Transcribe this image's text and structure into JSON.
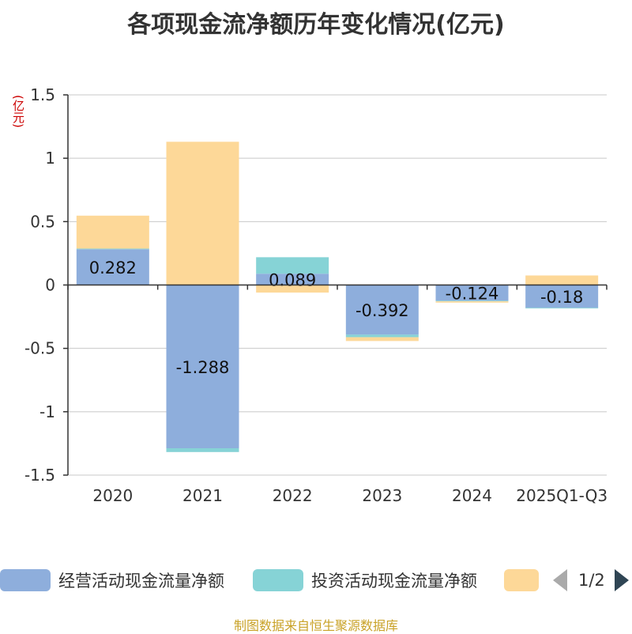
{
  "title": "各项现金流净额历年变化情况(亿元)",
  "y_unit_label": "(亿元)",
  "source": "制图数据来自恒生聚源数据库",
  "pager": "1/2",
  "colors": {
    "operating": "#8eaedc",
    "investing": "#86d3d6",
    "financing": "#fdd898",
    "grid": "#c8c8c8",
    "axis": "#333333"
  },
  "chart_data": {
    "type": "bar",
    "stacked": true,
    "categories": [
      "2020",
      "2021",
      "2022",
      "2023",
      "2024",
      "2025Q1-Q3"
    ],
    "ylim": [
      -1.5,
      1.5
    ],
    "yticks": [
      1.5,
      1,
      0.5,
      0,
      -0.5,
      -1,
      -1.5
    ],
    "ytick_labels": [
      "1.5",
      "1",
      "0.5",
      "0",
      "-0.5",
      "-1",
      "-1.5"
    ],
    "series": [
      {
        "name": "经营活动现金流量净额",
        "color": "#8eaedc",
        "values": [
          0.282,
          -1.288,
          0.089,
          -0.392,
          -0.124,
          -0.18
        ],
        "labels": [
          "0.282",
          "-1.288",
          "0.089",
          "-0.392",
          "-0.124",
          "-0.18"
        ]
      },
      {
        "name": "投资活动现金流量净额",
        "color": "#86d3d6",
        "values": [
          0.005,
          -0.03,
          0.13,
          -0.02,
          -0.005,
          -0.005
        ]
      },
      {
        "name": "",
        "color": "#fdd898",
        "values": [
          0.26,
          1.13,
          -0.06,
          -0.03,
          -0.01,
          0.075
        ]
      }
    ],
    "legend_position": "bottom",
    "grid": true
  }
}
